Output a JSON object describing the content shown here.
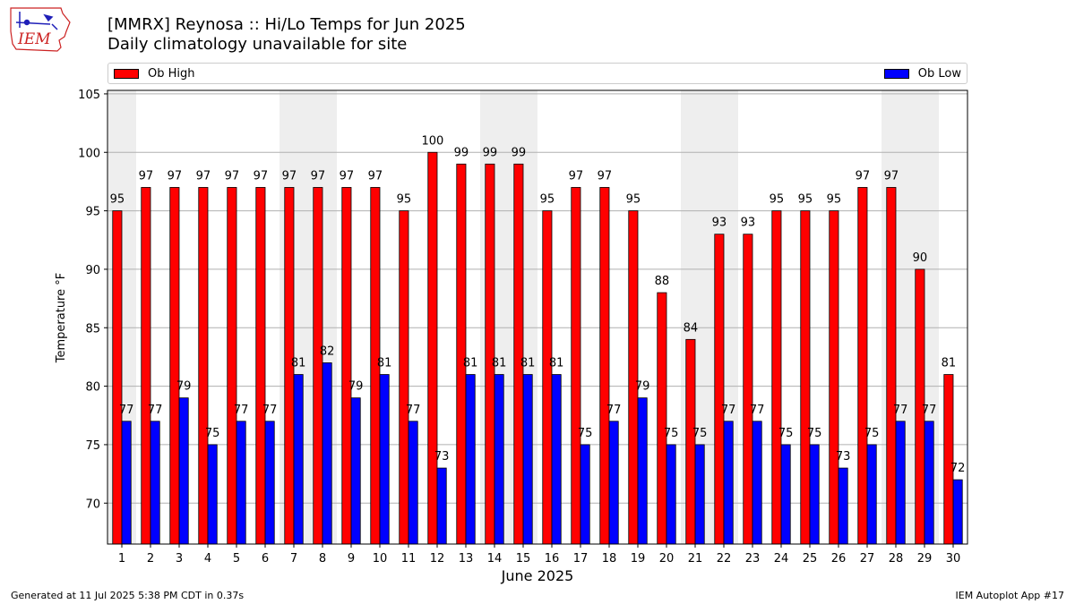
{
  "header": {
    "title_line1": "[MMRX] Reynosa :: Hi/Lo Temps for Jun 2025",
    "title_line2": "Daily climatology unavailable for site",
    "logo_text": "IEM"
  },
  "footer": {
    "generated": "Generated at 11 Jul 2025 5:38 PM CDT in 0.37s",
    "app": "IEM Autoplot App #17"
  },
  "colors": {
    "high": "#ff0000",
    "low": "#0000ff",
    "weekend_shade": "#eeeeee",
    "grid": "#b0b0b0",
    "logo": "#cc2222"
  },
  "chart_data": {
    "type": "bar",
    "xlabel": "June 2025",
    "ylabel": "Temperature °F",
    "ylim": [
      66.5,
      105.3
    ],
    "yticks": [
      70,
      75,
      80,
      85,
      90,
      95,
      100,
      105
    ],
    "grid": true,
    "legend": "top",
    "categories": [
      "1",
      "2",
      "3",
      "4",
      "5",
      "6",
      "7",
      "8",
      "9",
      "10",
      "11",
      "12",
      "13",
      "14",
      "15",
      "16",
      "17",
      "18",
      "19",
      "20",
      "21",
      "22",
      "23",
      "24",
      "25",
      "26",
      "27",
      "28",
      "29",
      "30"
    ],
    "weekend_days": [
      1,
      7,
      8,
      14,
      15,
      21,
      22,
      28,
      29
    ],
    "series": [
      {
        "name": "Ob High",
        "values": [
          95,
          97,
          97,
          97,
          97,
          97,
          97,
          97,
          97,
          97,
          95,
          100,
          99,
          99,
          99,
          95,
          97,
          97,
          95,
          88,
          84,
          93,
          93,
          95,
          95,
          95,
          97,
          97,
          90,
          81
        ]
      },
      {
        "name": "Ob Low",
        "values": [
          77,
          77,
          79,
          75,
          77,
          77,
          81,
          82,
          79,
          81,
          77,
          73,
          81,
          81,
          81,
          81,
          75,
          77,
          79,
          75,
          75,
          77,
          77,
          75,
          75,
          73,
          75,
          77,
          77,
          72
        ]
      }
    ]
  }
}
